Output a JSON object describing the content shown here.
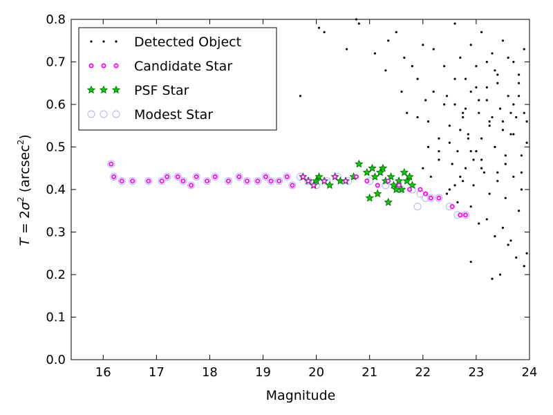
{
  "chart_data": {
    "type": "scatter",
    "title": "",
    "xlabel": "Magnitude",
    "ylabel_parts": {
      "main": "T",
      "eq": " = 2",
      "sigma": "σ",
      "sup": "2",
      "paren_open": " (arcsec",
      "paren_sup": "2",
      "paren_close": ")"
    },
    "xlim": [
      15.4,
      24
    ],
    "ylim": [
      0.0,
      0.8
    ],
    "xticks": [
      "16",
      "17",
      "18",
      "19",
      "20",
      "21",
      "22",
      "23",
      "24"
    ],
    "yticks": [
      "0.0",
      "0.1",
      "0.2",
      "0.3",
      "0.4",
      "0.5",
      "0.6",
      "0.7",
      "0.8"
    ],
    "legend_position": "top-left",
    "series": [
      {
        "name": "Detected Object",
        "marker": "dot",
        "color": "#000000",
        "x": [
          19.7,
          20.05,
          20.15,
          20.57,
          20.75,
          20.8,
          21.1,
          21.3,
          21.35,
          21.5,
          21.6,
          21.65,
          21.8,
          21.9,
          22.0,
          22.05,
          22.1,
          22.2,
          22.3,
          22.4,
          22.45,
          22.5,
          22.6,
          22.65,
          22.7,
          22.75,
          22.8,
          22.85,
          22.9,
          22.95,
          23.0,
          23.05,
          23.1,
          23.15,
          23.2,
          23.25,
          23.3,
          23.35,
          23.4,
          23.45,
          23.5,
          23.55,
          23.6,
          23.65,
          23.7,
          23.75,
          23.8,
          23.85,
          23.9,
          23.95,
          22.55,
          22.7,
          22.85,
          23.0,
          23.1,
          23.25,
          23.4,
          23.55,
          23.7,
          23.85,
          22.6,
          22.75,
          22.9,
          23.05,
          23.2,
          23.35,
          23.5,
          23.65,
          23.8,
          23.95,
          22.5,
          22.65,
          22.8,
          22.95,
          23.1,
          23.25,
          23.4,
          23.55,
          23.7,
          23.85,
          21.9,
          22.2,
          22.4,
          22.6,
          22.8,
          23.0,
          23.2,
          23.4,
          23.6,
          23.8,
          22.1,
          22.3,
          22.5,
          22.7,
          22.9,
          23.1,
          23.3,
          23.5,
          23.7,
          23.9,
          21.7,
          22.0,
          22.3,
          22.6,
          22.9,
          23.2,
          23.5,
          23.8,
          22.15,
          22.45,
          22.75,
          23.05,
          23.35,
          23.65,
          23.95,
          22.9,
          23.3,
          23.45,
          23.6,
          23.75,
          23.9
        ],
        "y": [
          0.62,
          0.78,
          0.77,
          0.73,
          0.8,
          0.79,
          0.72,
          0.68,
          0.75,
          0.77,
          0.63,
          0.71,
          0.69,
          0.66,
          0.74,
          0.61,
          0.56,
          0.73,
          0.52,
          0.69,
          0.62,
          0.55,
          0.79,
          0.49,
          0.71,
          0.58,
          0.66,
          0.53,
          0.74,
          0.47,
          0.69,
          0.61,
          0.77,
          0.44,
          0.64,
          0.56,
          0.72,
          0.5,
          0.67,
          0.59,
          0.75,
          0.46,
          0.62,
          0.53,
          0.7,
          0.57,
          0.65,
          0.48,
          0.73,
          0.51,
          0.46,
          0.43,
          0.52,
          0.49,
          0.45,
          0.55,
          0.42,
          0.48,
          0.53,
          0.44,
          0.6,
          0.57,
          0.63,
          0.58,
          0.61,
          0.68,
          0.54,
          0.58,
          0.62,
          0.56,
          0.4,
          0.37,
          0.45,
          0.41,
          0.47,
          0.39,
          0.44,
          0.38,
          0.43,
          0.4,
          0.57,
          0.63,
          0.6,
          0.66,
          0.59,
          0.64,
          0.7,
          0.65,
          0.71,
          0.67,
          0.5,
          0.47,
          0.51,
          0.54,
          0.49,
          0.52,
          0.57,
          0.56,
          0.6,
          0.58,
          0.58,
          0.45,
          0.49,
          0.41,
          0.36,
          0.33,
          0.31,
          0.35,
          0.43,
          0.39,
          0.42,
          0.32,
          0.29,
          0.28,
          0.25,
          0.23,
          0.19,
          0.2,
          0.27,
          0.24,
          0.22
        ]
      },
      {
        "name": "Candidate Star",
        "marker": "small-circle",
        "color": "#ff00ff",
        "x": [
          16.15,
          16.2,
          16.35,
          16.55,
          16.85,
          17.1,
          17.2,
          17.4,
          17.5,
          17.65,
          17.75,
          17.95,
          18.1,
          18.35,
          18.55,
          18.7,
          18.9,
          19.05,
          19.15,
          19.3,
          19.45,
          19.55,
          19.75,
          19.85,
          19.95,
          20.15,
          20.35,
          20.55,
          20.75,
          20.95,
          21.15,
          21.35,
          21.55,
          21.75,
          21.95,
          22.05,
          22.15,
          22.3,
          22.55,
          22.7,
          22.8
        ],
        "y": [
          0.46,
          0.43,
          0.42,
          0.42,
          0.42,
          0.42,
          0.43,
          0.43,
          0.42,
          0.41,
          0.43,
          0.42,
          0.43,
          0.42,
          0.43,
          0.42,
          0.42,
          0.43,
          0.42,
          0.42,
          0.43,
          0.41,
          0.43,
          0.42,
          0.41,
          0.42,
          0.43,
          0.42,
          0.43,
          0.42,
          0.41,
          0.42,
          0.41,
          0.4,
          0.4,
          0.39,
          0.38,
          0.38,
          0.36,
          0.34,
          0.34
        ]
      },
      {
        "name": "PSF Star",
        "marker": "star",
        "color": "#00aa00",
        "x": [
          19.75,
          19.85,
          19.95,
          20.0,
          20.05,
          20.15,
          20.25,
          20.35,
          20.45,
          20.55,
          20.7,
          20.8,
          20.95,
          21.05,
          21.1,
          21.2,
          21.25,
          21.3,
          21.4,
          21.45,
          21.55,
          21.6,
          21.7,
          21.75,
          21.8,
          21.0,
          21.15,
          21.35,
          21.5,
          21.65
        ],
        "y": [
          0.43,
          0.42,
          0.41,
          0.42,
          0.43,
          0.42,
          0.41,
          0.43,
          0.42,
          0.42,
          0.43,
          0.46,
          0.44,
          0.45,
          0.43,
          0.44,
          0.45,
          0.42,
          0.43,
          0.41,
          0.42,
          0.4,
          0.42,
          0.43,
          0.41,
          0.38,
          0.39,
          0.37,
          0.4,
          0.44
        ]
      },
      {
        "name": "Modest Star",
        "marker": "open-circle",
        "color": "#b0b0ff",
        "x": [
          16.15,
          16.2,
          16.35,
          16.55,
          16.85,
          17.1,
          17.2,
          17.4,
          17.5,
          17.65,
          17.75,
          17.95,
          18.1,
          18.35,
          18.55,
          18.7,
          18.9,
          19.05,
          19.15,
          19.3,
          19.45,
          19.55,
          19.7,
          19.85,
          20.0,
          20.2,
          20.4,
          20.6,
          21.0,
          21.3,
          21.6,
          21.8,
          21.95,
          22.05,
          22.15,
          22.3,
          22.5,
          22.65,
          22.8,
          21.9
        ],
        "y": [
          0.46,
          0.43,
          0.42,
          0.42,
          0.42,
          0.42,
          0.43,
          0.43,
          0.42,
          0.41,
          0.43,
          0.42,
          0.43,
          0.42,
          0.43,
          0.42,
          0.42,
          0.43,
          0.42,
          0.42,
          0.43,
          0.41,
          0.43,
          0.42,
          0.41,
          0.42,
          0.43,
          0.42,
          0.42,
          0.41,
          0.4,
          0.4,
          0.39,
          0.38,
          0.38,
          0.38,
          0.36,
          0.34,
          0.34,
          0.36
        ]
      }
    ]
  }
}
